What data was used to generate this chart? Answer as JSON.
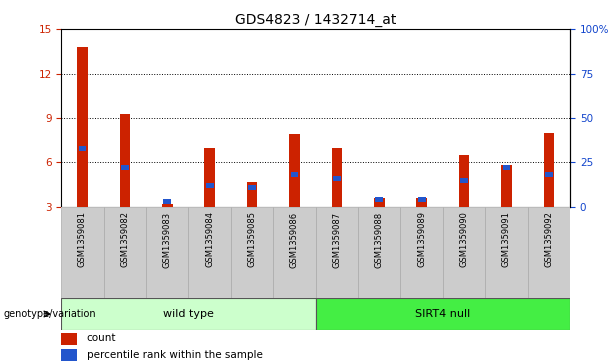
{
  "title": "GDS4823 / 1432714_at",
  "samples": [
    "GSM1359081",
    "GSM1359082",
    "GSM1359083",
    "GSM1359084",
    "GSM1359085",
    "GSM1359086",
    "GSM1359087",
    "GSM1359088",
    "GSM1359089",
    "GSM1359090",
    "GSM1359091",
    "GSM1359092"
  ],
  "count_values": [
    13.8,
    9.3,
    3.2,
    7.0,
    4.7,
    7.9,
    7.0,
    3.6,
    3.6,
    6.5,
    5.8,
    8.0
  ],
  "percentile_values": [
    33,
    22,
    3,
    12,
    11,
    18,
    16,
    4,
    4,
    15,
    22,
    18
  ],
  "ylim_left": [
    3,
    15
  ],
  "ylim_right": [
    0,
    100
  ],
  "yticks_left": [
    3,
    6,
    9,
    12,
    15
  ],
  "yticks_right": [
    0,
    25,
    50,
    75,
    100
  ],
  "ytick_labels_right": [
    "0",
    "25",
    "50",
    "75",
    "100%"
  ],
  "bar_color_red": "#cc2200",
  "bar_color_blue": "#2255cc",
  "background_color": "#ffffff",
  "plot_bg_color": "#ffffff",
  "tick_color_left": "#cc2200",
  "tick_color_right": "#1144cc",
  "grid_color": "#000000",
  "red_bar_width": 0.25,
  "blue_bar_width": 0.18,
  "group1_label": "wild type",
  "group2_label": "SIRT4 null",
  "group1_color": "#ccffcc",
  "group2_color": "#44ee44",
  "xticklabel_bg": "#cccccc",
  "genotype_label": "genotype/variation",
  "legend_count": "count",
  "legend_percentile": "percentile rank within the sample",
  "title_fontsize": 10,
  "tick_fontsize": 7.5,
  "n_samples": 12
}
